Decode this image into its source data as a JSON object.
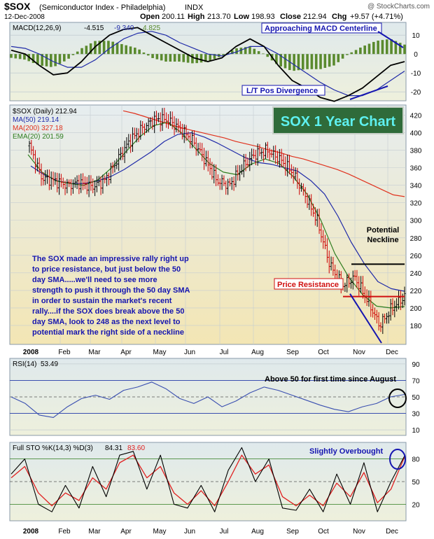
{
  "header": {
    "symbol": "$SOX",
    "description": "(Semiconductor Index - Philadelphia)",
    "exchange": "INDX",
    "watermark": "@ StockCharts.com",
    "date": "12-Dec-2008",
    "quote_labels": {
      "open": "Open",
      "high": "High",
      "low": "Low",
      "close": "Close",
      "chg": "Chg"
    },
    "quote": {
      "open": "200.11",
      "high": "213.70",
      "low": "198.93",
      "close": "212.94",
      "chg": "+9.57 (+4.71%)"
    }
  },
  "colors": {
    "price_up": "#000000",
    "price_down": "#cc0000",
    "ma50": "#1f2aa8",
    "ma200": "#e0321e",
    "ema20": "#2e7d1f",
    "macd_line": "#000000",
    "macd_signal": "#1f2aa8",
    "macd_hist": "#5a8a2e",
    "rsi_line": "#3a4fb0",
    "sto_k": "#000000",
    "sto_d": "#e02020",
    "annotation_blue": "#1515b0",
    "annotation_red": "#d01010",
    "title_box_bg": "#2f6b3a",
    "title_box_text": "#5ef0f0"
  },
  "chart_data": [
    {
      "type": "line",
      "panel": "macd",
      "legend_label": "MACD(12,26,9)",
      "series": [
        {
          "name": "MACD",
          "value": "-4.515"
        },
        {
          "name": "Signal",
          "value": "-9.340"
        },
        {
          "name": "Histogram",
          "value": "4.825"
        }
      ],
      "y_ticks": [
        "10",
        "0",
        "-10",
        "-20"
      ],
      "ylim": [
        -24,
        16
      ],
      "macd": [
        2,
        0,
        -6,
        -11,
        -10,
        -4,
        4,
        10,
        13,
        14,
        10,
        6,
        2,
        -2,
        -4,
        -2,
        4,
        8,
        4,
        -6,
        -14,
        -18,
        -23,
        -25,
        -22,
        -18,
        -12,
        -6,
        -4
      ],
      "signal": [
        4,
        3,
        0,
        -4,
        -7,
        -7,
        -3,
        3,
        8,
        11,
        12,
        10,
        6,
        3,
        0,
        -1,
        1,
        4,
        4,
        0,
        -5,
        -10,
        -15,
        -19,
        -22,
        -22,
        -19,
        -14,
        -9
      ],
      "annotations": [
        {
          "text": "Approaching MACD Centerline"
        },
        {
          "text": "L/T Pos Divergence"
        }
      ]
    },
    {
      "type": "line",
      "panel": "price",
      "title": "SOX 1 Year Chart",
      "legend": [
        {
          "key": "price",
          "text": "$SOX (Daily) 212.94"
        },
        {
          "key": "ma50",
          "text": "MA(50) 219.14"
        },
        {
          "key": "ma200",
          "text": "MA(200) 327.18"
        },
        {
          "key": "ema20",
          "text": "EMA(20) 201.59"
        }
      ],
      "x_labels": [
        "2008",
        "Feb",
        "Mar",
        "Apr",
        "May",
        "Jun",
        "Jul",
        "Aug",
        "Sep",
        "Oct",
        "Nov",
        "Dec"
      ],
      "y_ticks": [
        420,
        400,
        380,
        360,
        340,
        320,
        300,
        280,
        260,
        240,
        220,
        200,
        180
      ],
      "ylim": [
        160,
        430
      ],
      "price": [
        385,
        348,
        345,
        340,
        343,
        338,
        345,
        368,
        390,
        405,
        415,
        415,
        405,
        392,
        370,
        345,
        340,
        360,
        375,
        380,
        370,
        355,
        330,
        300,
        250,
        225,
        235,
        210,
        180,
        200,
        213
      ],
      "ma50": [
        362,
        352,
        345,
        342,
        342,
        345,
        350,
        358,
        368,
        378,
        390,
        398,
        400,
        395,
        388,
        380,
        372,
        366,
        364,
        360,
        356,
        345,
        330,
        305,
        275,
        250,
        230,
        222,
        219
      ],
      "ma200": [
        425,
        422,
        418,
        414,
        410,
        406,
        403,
        400,
        397,
        394,
        390,
        387,
        384,
        380,
        377,
        373,
        370,
        366,
        362,
        358,
        353,
        347,
        341,
        335,
        329,
        327
      ],
      "ema20": [
        375,
        355,
        345,
        342,
        340,
        346,
        360,
        378,
        395,
        408,
        412,
        400,
        382,
        365,
        355,
        352,
        364,
        370,
        365,
        350,
        330,
        300,
        262,
        235,
        215,
        202,
        200,
        201.59
      ],
      "annotations": [
        {
          "text": "The SOX made an impressive rally right up to price resistance, but just below the 50 day SMA.....we'll need to see more strength to push it through the 50 day SMA in order to sustain the market's recent rally....if the SOX does break above the 50 day SMA, look to 248 as the next level to potential mark the right side of a neckline"
        },
        {
          "text": "Potential Neckline",
          "level": 250
        },
        {
          "text": "Price Resistance",
          "level": 213
        }
      ]
    },
    {
      "type": "line",
      "panel": "rsi",
      "legend_label": "RSI(14)",
      "current": "53.49",
      "y_ticks": [
        "90",
        "70",
        "50",
        "30",
        "10"
      ],
      "ylim": [
        5,
        95
      ],
      "values": [
        50,
        42,
        28,
        25,
        38,
        48,
        52,
        47,
        58,
        62,
        68,
        60,
        48,
        42,
        50,
        38,
        45,
        55,
        62,
        58,
        52,
        46,
        40,
        35,
        32,
        38,
        42,
        50,
        53
      ],
      "annotation": "Above 50 for first time since August"
    },
    {
      "type": "line",
      "panel": "stochastic",
      "legend_label": "Full STO %K(14,3) %D(3)",
      "k_value": "84.31",
      "d_value": "83.60",
      "y_ticks": [
        "80",
        "50",
        "20"
      ],
      "ylim": [
        0,
        100
      ],
      "x_labels": [
        "2008",
        "Feb",
        "Mar",
        "Apr",
        "May",
        "Jun",
        "Jul",
        "Aug",
        "Sep",
        "Oct",
        "Nov",
        "Dec"
      ],
      "k": [
        60,
        80,
        20,
        10,
        45,
        15,
        70,
        30,
        85,
        90,
        40,
        85,
        20,
        15,
        45,
        10,
        65,
        95,
        50,
        80,
        15,
        12,
        40,
        10,
        60,
        20,
        75,
        10,
        50,
        84
      ],
      "d": [
        55,
        70,
        35,
        18,
        35,
        25,
        55,
        40,
        75,
        85,
        55,
        70,
        35,
        20,
        38,
        18,
        50,
        85,
        60,
        72,
        30,
        18,
        32,
        18,
        48,
        30,
        62,
        22,
        40,
        83
      ],
      "annotation": "Slightly Overbought"
    }
  ]
}
